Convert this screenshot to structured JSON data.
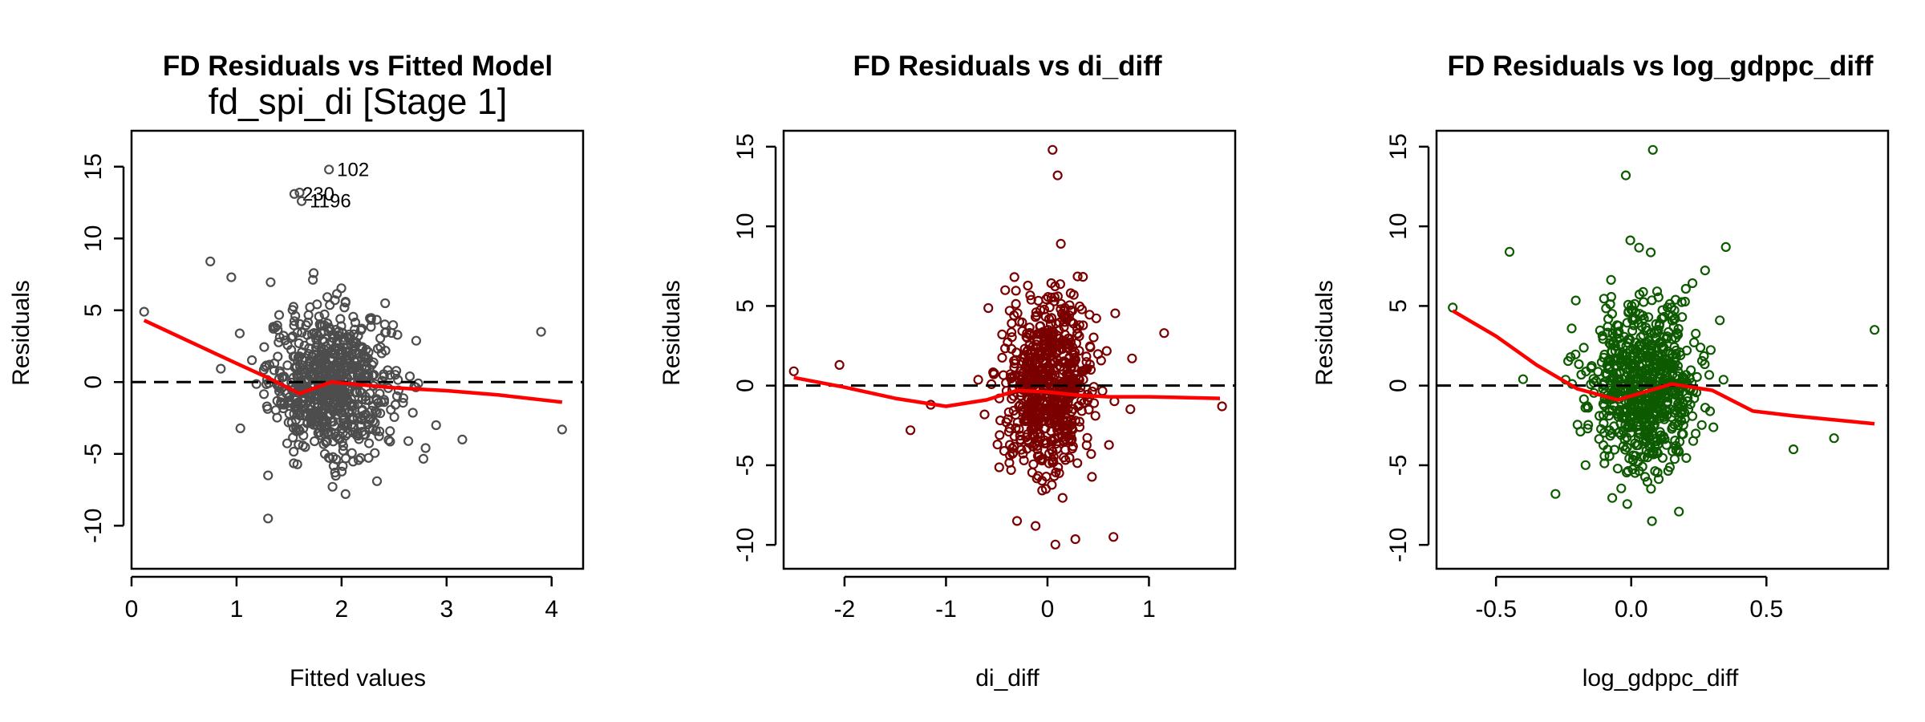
{
  "chart_data": [
    {
      "type": "scatter",
      "title": "FD Residuals vs Fitted Model",
      "subtitle": "fd_spi_di [Stage 1]",
      "xlabel": "Fitted values",
      "ylabel": "Residuals",
      "xlim": [
        0,
        4.3
      ],
      "ylim": [
        -13,
        17.5
      ],
      "xticks": [
        "0",
        "1",
        "2",
        "3",
        "4"
      ],
      "yticks": [
        "-10",
        "-5",
        "0",
        "5",
        "10",
        "15"
      ],
      "point_color": "#4d4d4d",
      "line_color": "#ff0000",
      "grid": false,
      "reference_line_y": 0,
      "smooth": {
        "x": [
          0.12,
          0.5,
          1.0,
          1.3,
          1.6,
          1.9,
          2.2,
          2.5,
          3.0,
          3.5,
          4.1
        ],
        "y": [
          4.3,
          3.0,
          1.3,
          0.3,
          -0.8,
          0.0,
          -0.2,
          -0.4,
          -0.6,
          -0.9,
          -1.4
        ]
      },
      "extra_points": {
        "x": [
          0.12,
          0.75,
          0.95,
          1.3,
          2.9,
          3.15,
          3.9,
          4.1,
          1.3,
          1.6
        ],
        "y": [
          4.9,
          8.4,
          7.3,
          -9.5,
          -3.0,
          -4.0,
          3.5,
          -3.3,
          -6.5,
          13.2
        ]
      },
      "outliers": [
        {
          "label": "102",
          "x": 1.88,
          "y": 14.8
        },
        {
          "label": "230",
          "x": 1.55,
          "y": 13.1
        },
        {
          "label": "1196",
          "x": 1.62,
          "y": 12.6
        }
      ],
      "cloud": {
        "x_center": 1.9,
        "x_sd": 0.3,
        "y_center": 0.0,
        "y_sd": 3.0,
        "count": 700
      }
    },
    {
      "type": "scatter",
      "title": "FD Residuals vs di_diff",
      "xlabel": "di_diff",
      "ylabel": "Residuals",
      "xlim": [
        -2.6,
        1.85
      ],
      "ylim": [
        -11.5,
        16
      ],
      "xticks": [
        "-2",
        "-1",
        "0",
        "1"
      ],
      "yticks": [
        "-10",
        "-5",
        "0",
        "5",
        "10",
        "15"
      ],
      "point_color": "#7a0000",
      "line_color": "#ff0000",
      "grid": false,
      "reference_line_y": 0,
      "smooth": {
        "x": [
          -2.5,
          -2.0,
          -1.5,
          -1.0,
          -0.6,
          -0.3,
          0.0,
          0.3,
          0.6,
          1.0,
          1.7
        ],
        "y": [
          0.5,
          -0.1,
          -0.8,
          -1.3,
          -0.9,
          -0.3,
          -0.4,
          -0.6,
          -0.7,
          -0.7,
          -0.8
        ]
      },
      "extra_points": {
        "x": [
          -2.5,
          -2.05,
          -1.15,
          -1.35,
          1.15,
          1.72,
          0.65,
          -0.3,
          0.05,
          0.1
        ],
        "y": [
          0.9,
          1.3,
          -1.2,
          -2.8,
          3.3,
          -1.3,
          -9.5,
          -8.5,
          14.8,
          13.2
        ]
      },
      "cloud": {
        "x_center": 0.0,
        "x_sd": 0.22,
        "y_center": 0.0,
        "y_sd": 3.2,
        "count": 700
      }
    },
    {
      "type": "scatter",
      "title": "FD Residuals vs log_gdppc_diff",
      "xlabel": "log_gdppc_diff",
      "ylabel": "Residuals",
      "xlim": [
        -0.72,
        0.95
      ],
      "ylim": [
        -11.5,
        16
      ],
      "xticks": [
        "-0.5",
        "0.0",
        "0.5"
      ],
      "yticks": [
        "-10",
        "-5",
        "0",
        "5",
        "10",
        "15"
      ],
      "point_color": "#0d5a00",
      "line_color": "#ff0000",
      "grid": false,
      "reference_line_y": 0,
      "smooth": {
        "x": [
          -0.66,
          -0.5,
          -0.35,
          -0.2,
          -0.05,
          0.05,
          0.15,
          0.3,
          0.45,
          0.6,
          0.9
        ],
        "y": [
          4.7,
          3.1,
          1.3,
          -0.2,
          -0.9,
          -0.4,
          0.1,
          -0.3,
          -1.6,
          -1.9,
          -2.4
        ]
      },
      "extra_points": {
        "x": [
          -0.66,
          -0.45,
          -0.4,
          0.9,
          0.6,
          0.75,
          -0.28,
          0.08,
          -0.02,
          0.35
        ],
        "y": [
          4.9,
          8.4,
          0.4,
          3.5,
          -4.0,
          -3.3,
          -6.8,
          14.8,
          13.2,
          8.7
        ]
      },
      "cloud": {
        "x_center": 0.05,
        "x_sd": 0.1,
        "y_center": 0.0,
        "y_sd": 3.1,
        "count": 700
      }
    }
  ]
}
